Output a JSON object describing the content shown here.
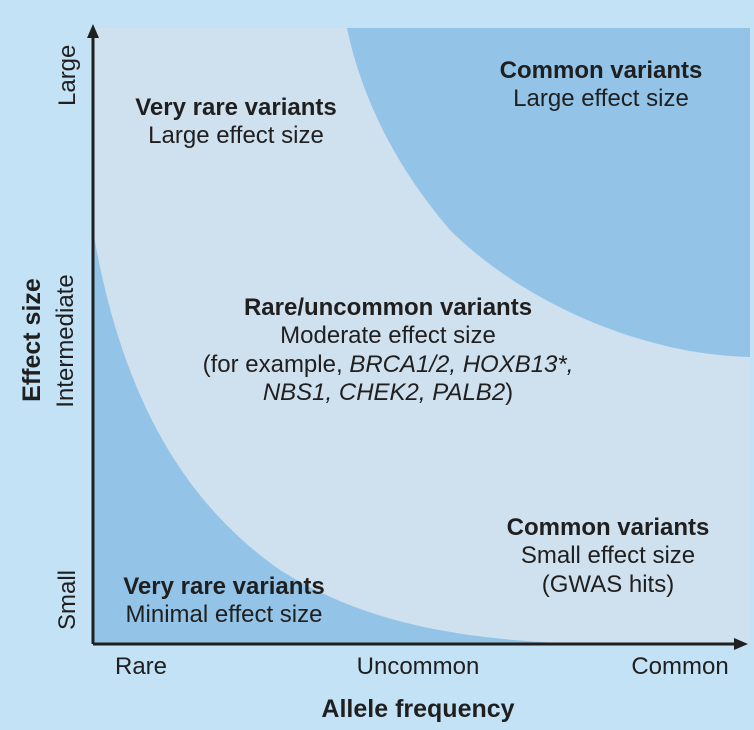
{
  "colors": {
    "background": "#c3e2f5",
    "inner_light": "#cfe0ee",
    "region_blue": "#93c4e8",
    "axis": "#1f1f1f",
    "text": "#1f1f1f"
  },
  "axes": {
    "y_title": "Effect size",
    "x_title": "Allele frequency",
    "y_ticks": [
      "Small",
      "Intermediate",
      "Large"
    ],
    "x_ticks": [
      "Rare",
      "Uncommon",
      "Common"
    ]
  },
  "regions": {
    "very_rare_large": {
      "title": "Very rare variants",
      "subtitle": "Large effect size"
    },
    "common_large": {
      "title": "Common variants",
      "subtitle": "Large effect size"
    },
    "rare_uncommon_moderate": {
      "title": "Rare/uncommon variants",
      "subtitle": "Moderate effect size",
      "example_prefix": "(for example,",
      "example_genes_line1": "BRCA1/2, HOXB13*,",
      "example_genes_line2": "NBS1, CHEK2, PALB2",
      "example_suffix": ")"
    },
    "common_small": {
      "title": "Common variants",
      "subtitle": "Small effect size",
      "note": "(GWAS hits)"
    },
    "very_rare_minimal": {
      "title": "Very rare variants",
      "subtitle": "Minimal effect size"
    }
  }
}
